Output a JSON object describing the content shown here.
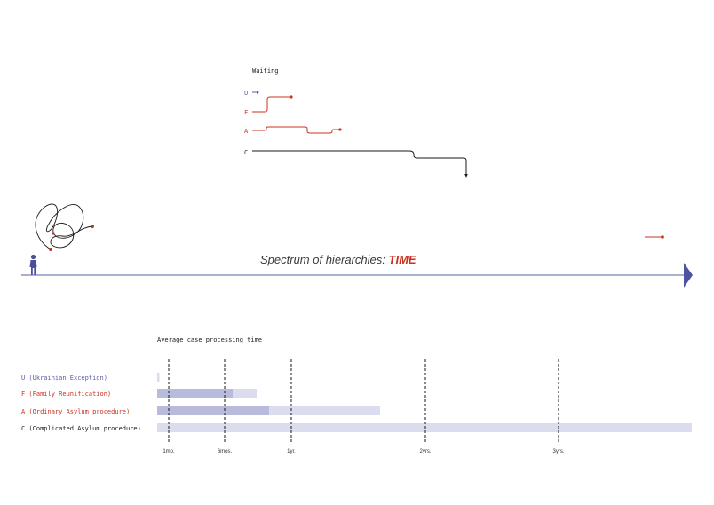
{
  "colors": {
    "blue": "#5a5fa8",
    "red": "#c8321e",
    "black": "#1a1a1a",
    "bar_light": "#dcdcef",
    "bar_dark": "#b9bbdc"
  },
  "waiting": {
    "title": "Waiting",
    "rows": [
      {
        "letter": "U"
      },
      {
        "letter": "F"
      },
      {
        "letter": "A"
      },
      {
        "letter": "C"
      }
    ]
  },
  "spectrum": {
    "title_main": "Spectrum of hierarchies: ",
    "title_accent": "TIME"
  },
  "processing": {
    "title": "Average case processing time",
    "rows": [
      {
        "label": "U (Ukrainian Exception)",
        "color": "blue",
        "min": 0,
        "max": 0.2
      },
      {
        "label": "F (Family Reunification)",
        "color": "red",
        "min": 0,
        "max": 6.8
      },
      {
        "label": "A (Ordinary Asylum procedure)",
        "color": "red",
        "min": 0,
        "max": 9.0
      },
      {
        "label": "C (Complicated Asylum procedure)",
        "color": "black",
        "min": 0,
        "max": 40
      }
    ],
    "ticks": [
      {
        "label": "1mo.",
        "months": 1
      },
      {
        "label": "6mos.",
        "months": 6
      },
      {
        "label": "1yr.",
        "months": 12
      },
      {
        "label": "2yrs.",
        "months": 24
      },
      {
        "label": "3yrs.",
        "months": 36
      }
    ]
  }
}
